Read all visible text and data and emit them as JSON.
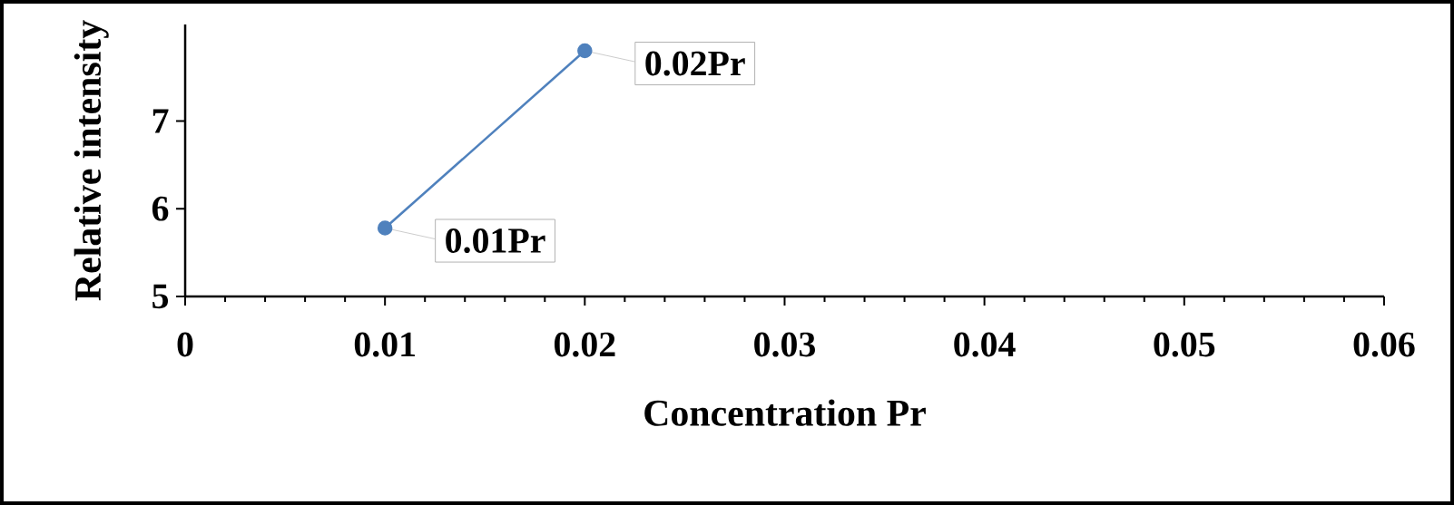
{
  "chart_data": {
    "type": "line",
    "xlabel": "Concentration Pr",
    "ylabel": "Relative intensity",
    "x": [
      0.01,
      0.02
    ],
    "series": [
      {
        "color": "#4f81bd",
        "values": [
          5.78,
          7.8
        ]
      }
    ],
    "xlim": [
      0,
      0.06
    ],
    "xticks": [
      0,
      0.01,
      0.02,
      0.03,
      0.04,
      0.05,
      0.06
    ],
    "ylim": [
      5,
      8.1
    ],
    "yticks": [
      5,
      6,
      7
    ],
    "marker": "circle",
    "line_style": "solid",
    "grid": false,
    "annotations": [
      {
        "text": "0.01Pr",
        "x": 0.01,
        "y": 5.78
      },
      {
        "text": "0.02Pr",
        "x": 0.02,
        "y": 7.8
      }
    ]
  }
}
